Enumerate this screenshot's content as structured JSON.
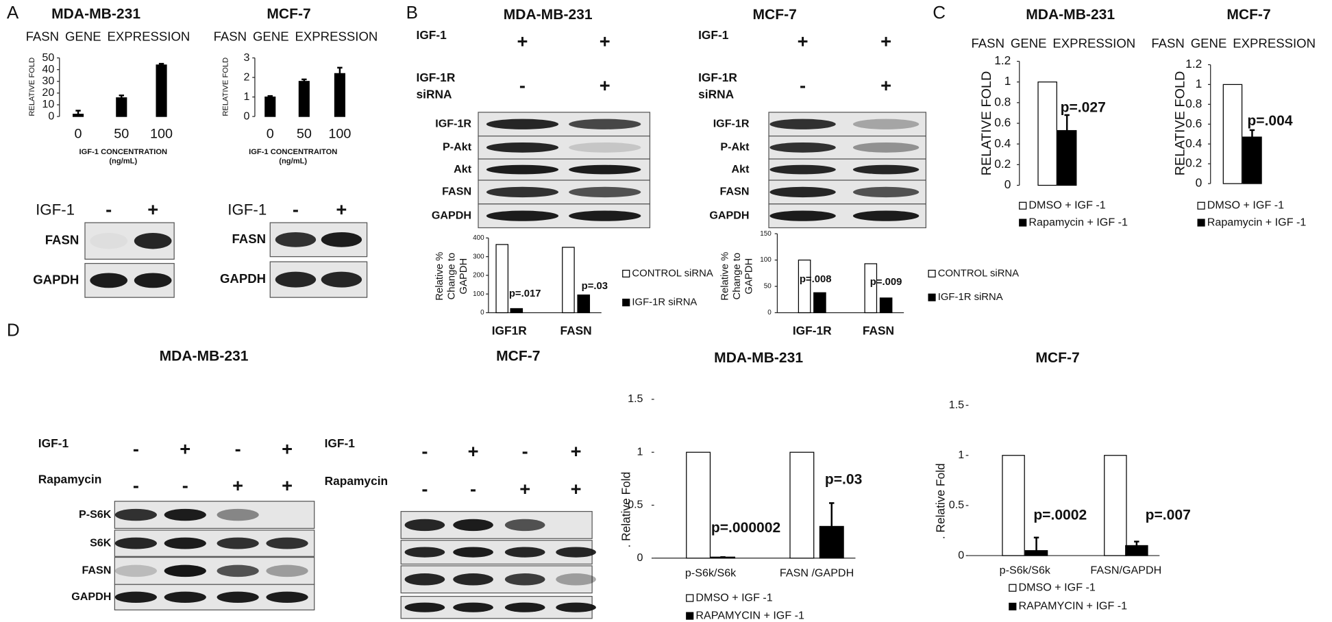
{
  "panel_labels": [
    "A",
    "B",
    "C",
    "D"
  ],
  "blots": [
    {
      "conditions": [
        {
          "label": [
            "IGF-1"
          ],
          "lanes": [
            "-",
            "+"
          ]
        }
      ],
      "rows": [
        "FASN",
        "GAPDH"
      ]
    },
    {
      "conditions": [
        {
          "label": [
            "IGF-1"
          ],
          "lanes": [
            "-",
            "+"
          ]
        }
      ],
      "rows": [
        "FASN",
        "GAPDH"
      ]
    },
    {
      "title": "MDA-MB-231",
      "conditions": [
        {
          "label": [
            "IGF-1"
          ],
          "lanes": [
            "+",
            "+"
          ]
        },
        {
          "label": [
            "IGF-1R",
            "siRNA"
          ],
          "lanes": [
            "-",
            "+"
          ]
        }
      ],
      "rows": [
        "IGF-1R",
        "P-Akt",
        "Akt",
        "FASN",
        "GAPDH"
      ]
    },
    {
      "title": "MCF-7",
      "conditions": [
        {
          "label": [
            "IGF-1"
          ],
          "lanes": [
            "+",
            "+"
          ]
        },
        {
          "label": [
            "IGF-1R",
            "siRNA"
          ],
          "lanes": [
            "-",
            "+"
          ]
        }
      ],
      "rows": [
        "IGF-1R",
        "P-Akt",
        "Akt",
        "FASN",
        "GAPDH"
      ]
    },
    {
      "title": "MDA-MB-231",
      "conditions": [
        {
          "label": [
            "IGF-1"
          ],
          "lanes": [
            "-",
            "+",
            "-",
            "+"
          ]
        },
        {
          "label": [
            "Rapamycin"
          ],
          "lanes": [
            "-",
            "-",
            "+",
            "+"
          ]
        }
      ],
      "rows": [
        "P-S6K",
        "S6K",
        "FASN",
        "GAPDH"
      ]
    },
    {
      "title": "MCF-7",
      "conditions": [
        {
          "label": [
            "IGF-1"
          ],
          "lanes": [
            "-",
            "+",
            "-",
            "+"
          ]
        },
        {
          "label": [
            "Rapamycin"
          ],
          "lanes": [
            "-",
            "-",
            "+",
            "+"
          ]
        }
      ],
      "rows": [
        null,
        null,
        null,
        null
      ]
    }
  ],
  "chart_data": [
    {
      "type": "bar",
      "title": "MDA-MB-231",
      "subtitle": "FASN GENE EXPRESSION",
      "y_label": [
        "RELATIVE FOLD"
      ],
      "x_label": [
        "IGF-1 CONCENTRATION",
        "(ng/mL)"
      ],
      "categories": [
        "0",
        "50",
        "100"
      ],
      "values": [
        2,
        16,
        44
      ],
      "errors": [
        3,
        2,
        1
      ],
      "color": "#000000",
      "ylim": [
        0,
        50
      ],
      "yticks": [
        0,
        10,
        20,
        30,
        40,
        50
      ]
    },
    {
      "type": "bar",
      "title": "MCF-7",
      "subtitle": "FASN GENE EXPRESSION",
      "y_label": [
        "RELATIVE FOLD"
      ],
      "x_label": [
        "IGF-1 CONCENTRAITON",
        "(ng/mL)"
      ],
      "categories": [
        "0",
        "50",
        "100"
      ],
      "values": [
        1,
        1.8,
        2.2
      ],
      "errors": [
        0.05,
        0.1,
        0.3
      ],
      "color": "#000000",
      "ylim": [
        0,
        3
      ],
      "yticks": [
        0,
        1,
        2,
        3
      ]
    },
    {
      "type": "bar",
      "y_label": [
        "Relative %",
        "Change to",
        "GAPDH"
      ],
      "categories": [
        "IGF1R",
        "FASN"
      ],
      "series": [
        {
          "name": "CONTROL siRNA",
          "color": "#ffffff",
          "values": [
            365,
            350
          ]
        },
        {
          "name": "IGF-1R siRNA",
          "color": "#000000",
          "values": [
            22,
            95
          ]
        }
      ],
      "annotations": [
        "p=.017",
        "p=.03"
      ],
      "ylim": [
        0,
        400
      ],
      "yticks": [
        0,
        100,
        200,
        300,
        400
      ]
    },
    {
      "type": "bar",
      "y_label": [
        "Relative %",
        "Change to",
        "GAPDH"
      ],
      "categories": [
        "IGF-1R",
        "FASN"
      ],
      "series": [
        {
          "name": "CONTROL siRNA",
          "color": "#ffffff",
          "values": [
            100,
            93
          ]
        },
        {
          "name": "IGF-1R siRNA",
          "color": "#000000",
          "values": [
            38,
            28
          ]
        }
      ],
      "annotations": [
        "p=.008",
        "p=.009"
      ],
      "ylim": [
        0,
        150
      ],
      "yticks": [
        0,
        50,
        100,
        150
      ]
    },
    {
      "type": "bar",
      "title": "MDA-MB-231",
      "subtitle": "FASN GENE EXPRESSION",
      "y_label": [
        "RELATIVE FOLD"
      ],
      "categories": [
        null
      ],
      "series": [
        {
          "name": "DMSO + IGF -1",
          "color": "#ffffff",
          "values": [
            1
          ]
        },
        {
          "name": "Rapamycin + IGF -1",
          "color": "#000000",
          "values": [
            0.53
          ],
          "errors": [
            0.15
          ]
        }
      ],
      "annotations": [
        "p=.027"
      ],
      "ylim": [
        0,
        1.2
      ],
      "yticks": [
        0,
        0.2,
        0.4,
        0.6,
        0.8,
        1,
        1.2
      ]
    },
    {
      "type": "bar",
      "title": "MCF-7",
      "subtitle": "FASN GENE EXPRESSION",
      "y_label": [
        "RELATIVE FOLD"
      ],
      "categories": [
        null
      ],
      "series": [
        {
          "name": "DMSO + IGF -1",
          "color": "#ffffff",
          "values": [
            1
          ]
        },
        {
          "name": "Rapamycin + IGF -1",
          "color": "#000000",
          "values": [
            0.47
          ],
          "errors": [
            0.07
          ]
        }
      ],
      "annotations": [
        "p=.004"
      ],
      "ylim": [
        0,
        1.2
      ],
      "yticks": [
        0,
        0.2,
        0.4,
        0.6,
        0.8,
        1,
        1.2
      ]
    },
    {
      "type": "bar",
      "title": "MDA-MB-231",
      "y_label": [
        ". Relative Fold"
      ],
      "categories": [
        "p-S6k/S6k",
        "FASN /GAPDH"
      ],
      "series": [
        {
          "name": "DMSO + IGF -1",
          "color": "#ffffff",
          "values": [
            1,
            1
          ]
        },
        {
          "name": "RAPAMYCIN + IGF -1",
          "color": "#000000",
          "values": [
            0.01,
            0.3
          ],
          "errors": [
            0,
            0.22
          ]
        }
      ],
      "annotations": [
        "p=.000002",
        "p=.03"
      ],
      "ylim": [
        0,
        1.5
      ],
      "yticks": [
        0,
        0.5,
        1,
        1.5
      ]
    },
    {
      "type": "bar",
      "title": "MCF-7",
      "y_label": [
        ". Relative Fold"
      ],
      "categories": [
        "p-S6k/S6k",
        "FASN/GAPDH"
      ],
      "series": [
        {
          "name": "DMSO + IGF -1",
          "color": "#ffffff",
          "values": [
            1,
            1
          ]
        },
        {
          "name": "RAPAMYCIN + IGF -1",
          "color": "#000000",
          "values": [
            0.05,
            0.1
          ],
          "errors": [
            0.13,
            0.04
          ]
        }
      ],
      "annotations": [
        "p=.0002",
        "p=.007"
      ],
      "ylim": [
        0,
        1.5
      ],
      "yticks": [
        0,
        0.5,
        1,
        1.5
      ]
    }
  ]
}
